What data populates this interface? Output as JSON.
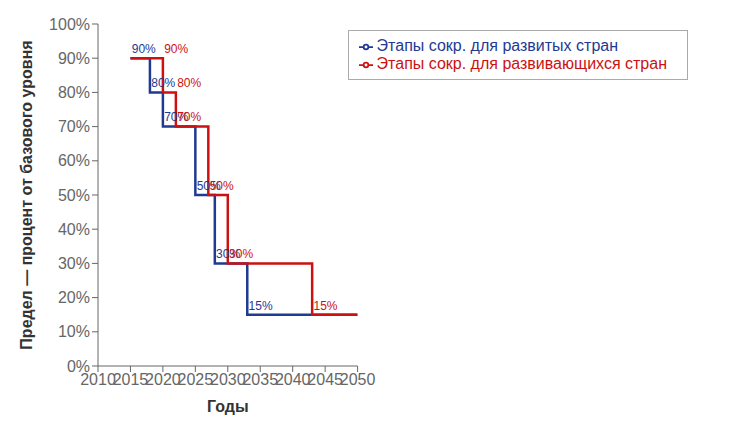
{
  "chart_data": {
    "type": "line",
    "xlabel": "Годы",
    "ylabel": "Предел — процент от базового уровня",
    "xlim": [
      2010,
      2050
    ],
    "ylim": [
      0,
      100
    ],
    "xticks": [
      2010,
      2015,
      2020,
      2025,
      2030,
      2035,
      2040,
      2045,
      2050
    ],
    "yticks": [
      {
        "value": 0,
        "label": "0%"
      },
      {
        "value": 10,
        "label": "10%"
      },
      {
        "value": 20,
        "label": "20%"
      },
      {
        "value": 30,
        "label": "30%"
      },
      {
        "value": 40,
        "label": "40%"
      },
      {
        "value": 50,
        "label": "50%"
      },
      {
        "value": 60,
        "label": "60%"
      },
      {
        "value": 70,
        "label": "70%"
      },
      {
        "value": 80,
        "label": "80%"
      },
      {
        "value": 90,
        "label": "90%"
      },
      {
        "value": 100,
        "label": "100%"
      }
    ],
    "grid": false,
    "legend": "upper right",
    "series": [
      {
        "name": "Этапы сокр. для  развитых стран",
        "color": "#1F3A93",
        "x": [
          2015,
          2018,
          2018,
          2020,
          2020,
          2025,
          2025,
          2028,
          2028,
          2033,
          2033,
          2050
        ],
        "values": [
          90,
          90,
          80,
          80,
          70,
          70,
          50,
          50,
          30,
          30,
          15,
          15
        ],
        "annotations": [
          {
            "x": 2015.2,
            "y": 91.5,
            "label": "90%"
          },
          {
            "x": 2018.2,
            "y": 81.5,
            "label": "80%"
          },
          {
            "x": 2020.2,
            "y": 71.5,
            "label": "70%"
          },
          {
            "x": 2025.2,
            "y": 51.5,
            "label": "50%"
          },
          {
            "x": 2028.2,
            "y": 31.5,
            "label": "30%"
          },
          {
            "x": 2033.2,
            "y": 16.5,
            "label": "15%"
          }
        ]
      },
      {
        "name": "Этапы сокр. для развивающихся стран",
        "color": "#CC1111",
        "x": [
          2015,
          2020,
          2020,
          2022,
          2022,
          2027,
          2027,
          2030,
          2030,
          2043,
          2043,
          2050
        ],
        "values": [
          90,
          90,
          80,
          80,
          70,
          70,
          50,
          50,
          30,
          30,
          15,
          15
        ],
        "annotations": [
          {
            "x": 2020.2,
            "y": 91.5,
            "label": "90%"
          },
          {
            "x": 2022.2,
            "y": 81.5,
            "label": "80%"
          },
          {
            "x": 2022.2,
            "y": 71.5,
            "label": "70%"
          },
          {
            "x": 2027.2,
            "y": 51.5,
            "label": "50%"
          },
          {
            "x": 2030.2,
            "y": 31.5,
            "label": "30%"
          },
          {
            "x": 2043.2,
            "y": 16.5,
            "label": "15%"
          }
        ]
      }
    ]
  }
}
